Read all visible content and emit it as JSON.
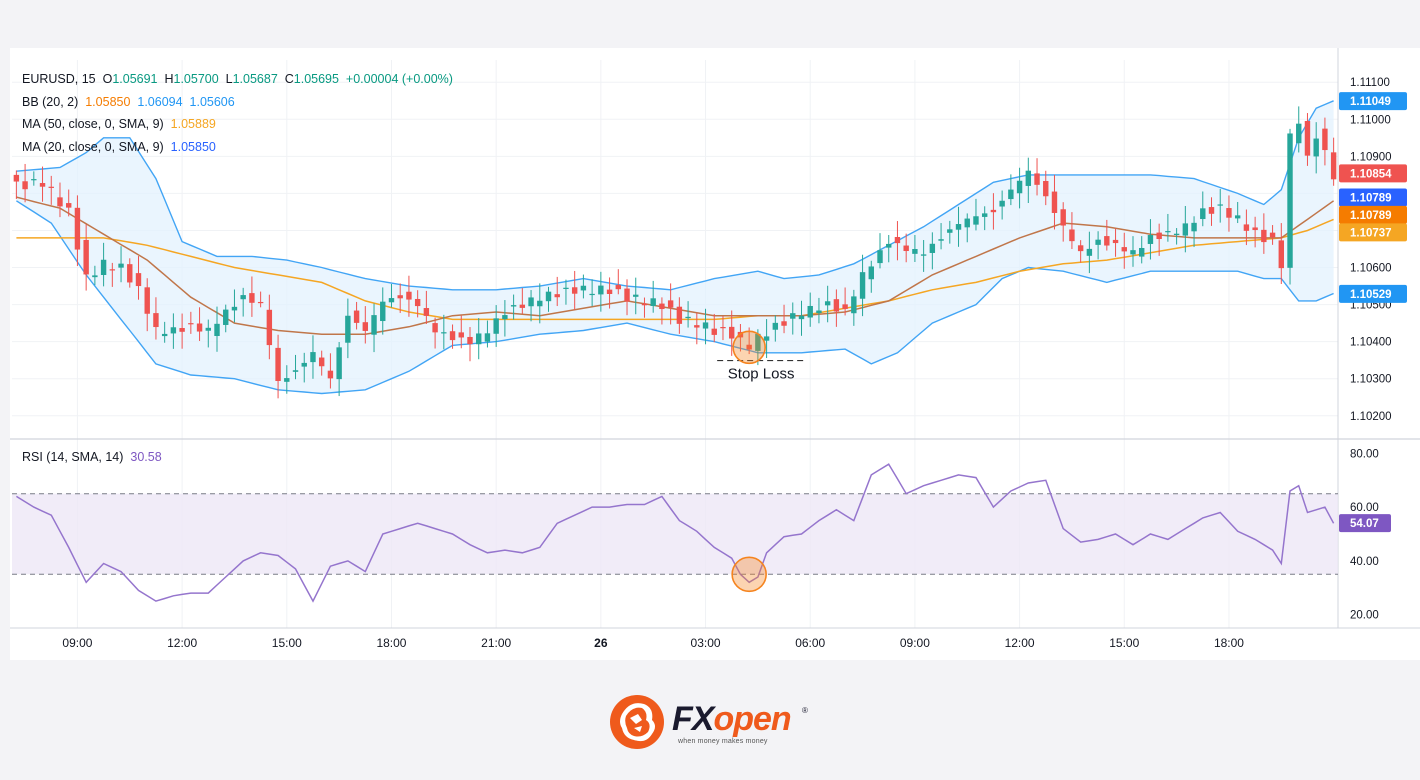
{
  "header": {
    "symbol": "EURUSD, 15",
    "o_label": "O",
    "o_value": "1.05691",
    "h_label": "H",
    "h_value": "1.05700",
    "l_label": "L",
    "l_value": "1.05687",
    "c_label": "C",
    "c_value": "1.05695",
    "change": "+0.00004 (+0.00%)"
  },
  "indicators": [
    {
      "name": "BB (20, 2)",
      "values": [
        "1.05850",
        "1.06094",
        "1.05606"
      ],
      "colors": [
        "#f57c00",
        "#2196f3",
        "#2196f3"
      ]
    },
    {
      "name": "MA (50, close, 0, SMA, 9)",
      "values": [
        "1.05889"
      ],
      "colors": [
        "#f5a623"
      ]
    },
    {
      "name": "MA (20, close, 0, SMA, 9)",
      "values": [
        "1.05850"
      ],
      "colors": [
        "#2962ff"
      ]
    }
  ],
  "rsi_legend": {
    "name": "RSI (14, SMA, 14)",
    "value": "30.58"
  },
  "annotation": {
    "label": "Stop Loss"
  },
  "price_badges": [
    {
      "text": "1.11049",
      "bg": "#2196f3",
      "price": 1.11049
    },
    {
      "text": "1.10854",
      "bg": "#ef5350",
      "price": 1.10854
    },
    {
      "text": "1.10789",
      "bg": "#2962ff",
      "price": 1.10789
    },
    {
      "text": "1.10789",
      "bg": "#f57c00",
      "price": 1.10742
    },
    {
      "text": "1.10737",
      "bg": "#f5a623",
      "price": 1.10695
    },
    {
      "text": "1.10529",
      "bg": "#2196f3",
      "price": 1.10529
    }
  ],
  "rsi_badge": {
    "text": "54.07",
    "bg": "#7e57c2",
    "value": 54.07
  },
  "logo": {
    "brand_fx": "FX",
    "brand_open": "open",
    "registered": "®",
    "tagline": "when money makes money"
  },
  "colors": {
    "up": "#26a69a",
    "down": "#ef5350",
    "bb": "#42a5f5",
    "bb_fill": "#e3f2fd",
    "ma20": "#c0764a",
    "ma50": "#f5a623",
    "rsi": "#9575cd",
    "rsi_band": "#ede7f6",
    "marker": "#f5841f"
  },
  "chart_data": [
    {
      "type": "candlestick",
      "title": "EURUSD, 15",
      "ylim": [
        1.1014,
        1.1116
      ],
      "y_ticks": [
        1.102,
        1.103,
        1.104,
        1.105,
        1.106,
        1.107,
        1.108,
        1.109,
        1.11,
        1.111
      ],
      "y_tick_labels": [
        "1.10200",
        "1.10300",
        "1.10400",
        "1.10500",
        "1.10600",
        "1.10700",
        "1.10800",
        "1.10900",
        "1.11000",
        "1.11100"
      ],
      "x_ticks": [
        "09:00",
        "12:00",
        "15:00",
        "18:00",
        "21:00",
        "26",
        "03:00",
        "06:00",
        "09:00",
        "12:00",
        "15:00",
        "18:00"
      ],
      "bars_per_tick": 12,
      "bar_count": 152,
      "close_keyframes": [
        [
          0,
          1.1082
        ],
        [
          3,
          1.1083
        ],
        [
          6,
          1.1075
        ],
        [
          8,
          1.1057
        ],
        [
          10,
          1.1061
        ],
        [
          12,
          1.106
        ],
        [
          14,
          1.1054
        ],
        [
          16,
          1.1043
        ],
        [
          18,
          1.1043
        ],
        [
          20,
          1.1044
        ],
        [
          22,
          1.1043
        ],
        [
          24,
          1.1048
        ],
        [
          26,
          1.1052
        ],
        [
          28,
          1.105
        ],
        [
          30,
          1.1029
        ],
        [
          32,
          1.1032
        ],
        [
          34,
          1.1037
        ],
        [
          36,
          1.103
        ],
        [
          38,
          1.1047
        ],
        [
          40,
          1.1043
        ],
        [
          42,
          1.1051
        ],
        [
          44,
          1.1052
        ],
        [
          46,
          1.105
        ],
        [
          48,
          1.1043
        ],
        [
          50,
          1.1041
        ],
        [
          52,
          1.104
        ],
        [
          54,
          1.1043
        ],
        [
          56,
          1.1048
        ],
        [
          58,
          1.105
        ],
        [
          60,
          1.1052
        ],
        [
          62,
          1.1053
        ],
        [
          64,
          1.1054
        ],
        [
          66,
          1.1054
        ],
        [
          68,
          1.1054
        ],
        [
          70,
          1.1052
        ],
        [
          72,
          1.1051
        ],
        [
          74,
          1.105
        ],
        [
          76,
          1.1046
        ],
        [
          78,
          1.1045
        ],
        [
          80,
          1.1043
        ],
        [
          82,
          1.1042
        ],
        [
          83,
          1.104
        ],
        [
          84,
          1.1039
        ],
        [
          85,
          1.1041
        ],
        [
          87,
          1.1044
        ],
        [
          90,
          1.1048
        ],
        [
          93,
          1.105
        ],
        [
          95,
          1.1048
        ],
        [
          97,
          1.1058
        ],
        [
          100,
          1.1067
        ],
        [
          102,
          1.1065
        ],
        [
          104,
          1.1064
        ],
        [
          106,
          1.1068
        ],
        [
          108,
          1.1072
        ],
        [
          110,
          1.1074
        ],
        [
          112,
          1.1075
        ],
        [
          114,
          1.1081
        ],
        [
          116,
          1.1086
        ],
        [
          118,
          1.1079
        ],
        [
          120,
          1.1071
        ],
        [
          122,
          1.1064
        ],
        [
          124,
          1.1067
        ],
        [
          126,
          1.1066
        ],
        [
          128,
          1.1064
        ],
        [
          130,
          1.1068
        ],
        [
          132,
          1.1069
        ],
        [
          134,
          1.1071
        ],
        [
          136,
          1.1075
        ],
        [
          138,
          1.1076
        ],
        [
          140,
          1.1073
        ],
        [
          142,
          1.1069
        ],
        [
          144,
          1.1067
        ],
        [
          145,
          1.1061
        ],
        [
          146,
          1.1095
        ],
        [
          147,
          1.11
        ],
        [
          148,
          1.1089
        ],
        [
          149,
          1.1096
        ],
        [
          151,
          1.1085
        ]
      ],
      "bollinger_upper_keyframes": [
        [
          0,
          1.1086
        ],
        [
          5,
          1.1087
        ],
        [
          8,
          1.1091
        ],
        [
          10,
          1.1095
        ],
        [
          13,
          1.1095
        ],
        [
          16,
          1.1084
        ],
        [
          19,
          1.1067
        ],
        [
          23,
          1.1063
        ],
        [
          27,
          1.1063
        ],
        [
          31,
          1.1062
        ],
        [
          35,
          1.106
        ],
        [
          40,
          1.1057
        ],
        [
          45,
          1.1055
        ],
        [
          50,
          1.1054
        ],
        [
          55,
          1.1054
        ],
        [
          60,
          1.1055
        ],
        [
          65,
          1.1057
        ],
        [
          70,
          1.1055
        ],
        [
          75,
          1.1054
        ],
        [
          80,
          1.1057
        ],
        [
          85,
          1.1059
        ],
        [
          88,
          1.1057
        ],
        [
          92,
          1.1058
        ],
        [
          96,
          1.1061
        ],
        [
          100,
          1.1066
        ],
        [
          104,
          1.1071
        ],
        [
          108,
          1.1077
        ],
        [
          112,
          1.1083
        ],
        [
          116,
          1.1085
        ],
        [
          120,
          1.1085
        ],
        [
          125,
          1.1085
        ],
        [
          130,
          1.1085
        ],
        [
          135,
          1.1084
        ],
        [
          140,
          1.108
        ],
        [
          143,
          1.1077
        ],
        [
          145,
          1.1081
        ],
        [
          147,
          1.1095
        ],
        [
          149,
          1.1103
        ],
        [
          151,
          1.1105
        ]
      ],
      "bollinger_lower_keyframes": [
        [
          0,
          1.1078
        ],
        [
          4,
          1.1072
        ],
        [
          8,
          1.1058
        ],
        [
          12,
          1.1046
        ],
        [
          16,
          1.1034
        ],
        [
          20,
          1.1031
        ],
        [
          25,
          1.103
        ],
        [
          30,
          1.1027
        ],
        [
          35,
          1.1026
        ],
        [
          40,
          1.1027
        ],
        [
          45,
          1.1032
        ],
        [
          50,
          1.1039
        ],
        [
          55,
          1.104
        ],
        [
          60,
          1.1042
        ],
        [
          65,
          1.1043
        ],
        [
          70,
          1.1045
        ],
        [
          75,
          1.1042
        ],
        [
          80,
          1.104
        ],
        [
          85,
          1.1037
        ],
        [
          90,
          1.1037
        ],
        [
          95,
          1.1038
        ],
        [
          98,
          1.1034
        ],
        [
          101,
          1.1037
        ],
        [
          105,
          1.1045
        ],
        [
          110,
          1.105
        ],
        [
          113,
          1.1057
        ],
        [
          116,
          1.106
        ],
        [
          120,
          1.1059
        ],
        [
          125,
          1.1056
        ],
        [
          130,
          1.1059
        ],
        [
          135,
          1.1059
        ],
        [
          140,
          1.1059
        ],
        [
          143,
          1.1057
        ],
        [
          145,
          1.1057
        ],
        [
          147,
          1.1051
        ],
        [
          149,
          1.1051
        ],
        [
          151,
          1.1053
        ]
      ],
      "ma20_keyframes": [
        [
          0,
          1.1079
        ],
        [
          5,
          1.1076
        ],
        [
          10,
          1.1069
        ],
        [
          15,
          1.1062
        ],
        [
          20,
          1.1052
        ],
        [
          25,
          1.1045
        ],
        [
          30,
          1.1043
        ],
        [
          35,
          1.1042
        ],
        [
          40,
          1.1042
        ],
        [
          45,
          1.1044
        ],
        [
          50,
          1.1047
        ],
        [
          55,
          1.1048
        ],
        [
          60,
          1.1047
        ],
        [
          65,
          1.1049
        ],
        [
          70,
          1.1051
        ],
        [
          75,
          1.1049
        ],
        [
          80,
          1.1047
        ],
        [
          85,
          1.1047
        ],
        [
          90,
          1.1047
        ],
        [
          95,
          1.1048
        ],
        [
          100,
          1.1051
        ],
        [
          105,
          1.1058
        ],
        [
          110,
          1.1063
        ],
        [
          115,
          1.1068
        ],
        [
          120,
          1.1072
        ],
        [
          125,
          1.1071
        ],
        [
          130,
          1.1069
        ],
        [
          135,
          1.1068
        ],
        [
          140,
          1.1068
        ],
        [
          145,
          1.1068
        ],
        [
          148,
          1.1073
        ],
        [
          151,
          1.1078
        ]
      ],
      "ma50_keyframes": [
        [
          0,
          1.1068
        ],
        [
          10,
          1.1068
        ],
        [
          15,
          1.1066
        ],
        [
          25,
          1.106
        ],
        [
          30,
          1.1058
        ],
        [
          35,
          1.1056
        ],
        [
          40,
          1.1051
        ],
        [
          45,
          1.1048
        ],
        [
          50,
          1.1046
        ],
        [
          55,
          1.1046
        ],
        [
          60,
          1.1046
        ],
        [
          65,
          1.1046
        ],
        [
          70,
          1.1046
        ],
        [
          75,
          1.1046
        ],
        [
          80,
          1.1046
        ],
        [
          85,
          1.1047
        ],
        [
          90,
          1.1047
        ],
        [
          95,
          1.1049
        ],
        [
          100,
          1.1051
        ],
        [
          105,
          1.1054
        ],
        [
          110,
          1.1056
        ],
        [
          115,
          1.1059
        ],
        [
          120,
          1.1061
        ],
        [
          125,
          1.1062
        ],
        [
          130,
          1.1064
        ],
        [
          135,
          1.1066
        ],
        [
          140,
          1.1067
        ],
        [
          145,
          1.1068
        ],
        [
          148,
          1.107
        ],
        [
          151,
          1.1073
        ]
      ],
      "stop_loss_price": 1.10349,
      "marker_bar": 84
    },
    {
      "type": "line",
      "title": "RSI (14, SMA, 14)",
      "ylim": [
        15,
        85
      ],
      "y_ticks": [
        20,
        40,
        60,
        80
      ],
      "y_tick_labels": [
        "20.00",
        "40.00",
        "60.00",
        "80.00"
      ],
      "band": [
        35,
        65
      ],
      "rsi_keyframes": [
        [
          0,
          64
        ],
        [
          2,
          60
        ],
        [
          4,
          57
        ],
        [
          6,
          45
        ],
        [
          8,
          32
        ],
        [
          10,
          39
        ],
        [
          12,
          36
        ],
        [
          14,
          29
        ],
        [
          16,
          25
        ],
        [
          18,
          27
        ],
        [
          20,
          28
        ],
        [
          22,
          28
        ],
        [
          24,
          34
        ],
        [
          26,
          40
        ],
        [
          28,
          43
        ],
        [
          30,
          42
        ],
        [
          32,
          37
        ],
        [
          34,
          25
        ],
        [
          36,
          38
        ],
        [
          38,
          40
        ],
        [
          40,
          36
        ],
        [
          42,
          50
        ],
        [
          44,
          52
        ],
        [
          46,
          54
        ],
        [
          48,
          52
        ],
        [
          50,
          50
        ],
        [
          52,
          46
        ],
        [
          54,
          43
        ],
        [
          56,
          44
        ],
        [
          58,
          43
        ],
        [
          60,
          45
        ],
        [
          62,
          54
        ],
        [
          64,
          57
        ],
        [
          66,
          60
        ],
        [
          68,
          60
        ],
        [
          70,
          61
        ],
        [
          72,
          61
        ],
        [
          74,
          64
        ],
        [
          76,
          55
        ],
        [
          78,
          51
        ],
        [
          80,
          45
        ],
        [
          82,
          41
        ],
        [
          83,
          35
        ],
        [
          84,
          32
        ],
        [
          85,
          34
        ],
        [
          86,
          43
        ],
        [
          88,
          49
        ],
        [
          90,
          50
        ],
        [
          92,
          55
        ],
        [
          94,
          59
        ],
        [
          96,
          55
        ],
        [
          98,
          72
        ],
        [
          100,
          76
        ],
        [
          102,
          65
        ],
        [
          104,
          68
        ],
        [
          106,
          70
        ],
        [
          108,
          72
        ],
        [
          110,
          71
        ],
        [
          112,
          60
        ],
        [
          114,
          66
        ],
        [
          116,
          69
        ],
        [
          118,
          70
        ],
        [
          120,
          52
        ],
        [
          122,
          47
        ],
        [
          124,
          48
        ],
        [
          126,
          50
        ],
        [
          128,
          46
        ],
        [
          130,
          50
        ],
        [
          132,
          48
        ],
        [
          134,
          52
        ],
        [
          136,
          56
        ],
        [
          138,
          58
        ],
        [
          140,
          51
        ],
        [
          142,
          48
        ],
        [
          144,
          44
        ],
        [
          145,
          39
        ],
        [
          146,
          66
        ],
        [
          147,
          68
        ],
        [
          148,
          58
        ],
        [
          150,
          60
        ],
        [
          151,
          54
        ]
      ],
      "marker_bar": 84
    }
  ]
}
